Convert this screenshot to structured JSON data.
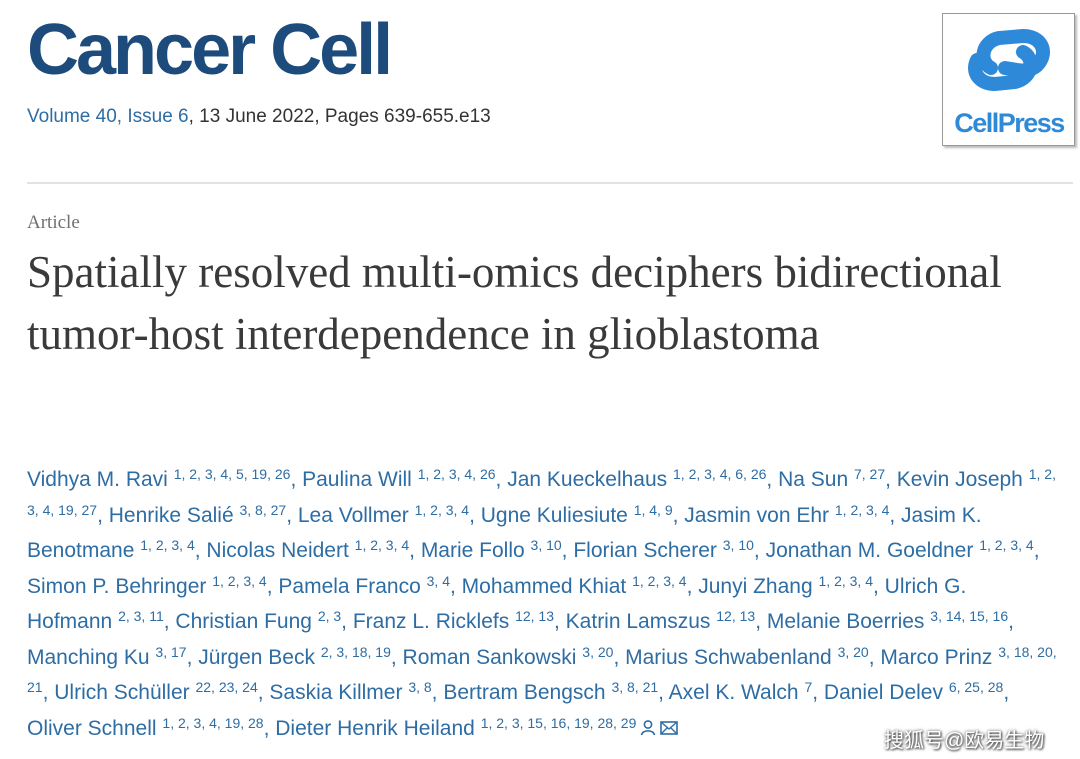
{
  "journal": {
    "name": "Cancer Cell",
    "volume_issue": "Volume 40, Issue 6",
    "details": ", 13 June 2022, Pages 639-655.e13",
    "publisher_logo": "CellPress"
  },
  "article": {
    "type": "Article",
    "title": "Spatially resolved multi-omics deciphers bidirectional tumor-host interdependence in glioblastoma",
    "authors": [
      {
        "name": "Vidhya M. Ravi",
        "affil": "1, 2, 3, 4, 5, 19, 26",
        "sep": ", "
      },
      {
        "name": "Paulina Will",
        "affil": "1, 2, 3, 4, 26",
        "sep": ", "
      },
      {
        "name": "Jan Kueckelhaus",
        "affil": "1, 2, 3, 4, 6, 26",
        "sep": ", "
      },
      {
        "name": "Na Sun",
        "affil": "7, 27",
        "sep": ", "
      },
      {
        "name": "Kevin Joseph",
        "affil": "1, 2, 3, 4, 19, 27",
        "sep": ", "
      },
      {
        "name": "Henrike Salié",
        "affil": "3, 8, 27",
        "sep": ", "
      },
      {
        "name": "Lea Vollmer",
        "affil": "1, 2, 3, 4",
        "sep": ", "
      },
      {
        "name": "Ugne Kuliesiute",
        "affil": "1, 4, 9",
        "sep": ", "
      },
      {
        "name": "Jasmin von Ehr",
        "affil": "1, 2, 3, 4",
        "sep": ", "
      },
      {
        "name": "Jasim K. Benotmane",
        "affil": "1, 2, 3, 4",
        "sep": ", "
      },
      {
        "name": "Nicolas Neidert",
        "affil": "1, 2, 3, 4",
        "sep": ", "
      },
      {
        "name": "Marie Follo",
        "affil": "3, 10",
        "sep": ", "
      },
      {
        "name": "Florian Scherer",
        "affil": "3, 10",
        "sep": ", "
      },
      {
        "name": "Jonathan M. Goeldner",
        "affil": "1, 2, 3, 4",
        "sep": ", "
      },
      {
        "name": "Simon P. Behringer",
        "affil": "1, 2, 3, 4",
        "sep": ", "
      },
      {
        "name": "Pamela Franco",
        "affil": "3, 4",
        "sep": ", "
      },
      {
        "name": "Mohammed Khiat",
        "affil": "1, 2, 3, 4",
        "sep": ", "
      },
      {
        "name": "Junyi Zhang",
        "affil": "1, 2, 3, 4",
        "sep": ", "
      },
      {
        "name": "Ulrich G. Hofmann",
        "affil": "2, 3, 11",
        "sep": ", "
      },
      {
        "name": "Christian Fung",
        "affil": "2, 3",
        "sep": ", "
      },
      {
        "name": "Franz L. Ricklefs",
        "affil": "12, 13",
        "sep": ", "
      },
      {
        "name": "Katrin Lamszus",
        "affil": "12, 13",
        "sep": ", "
      },
      {
        "name": "Melanie Boerries",
        "affil": "3, 14, 15, 16",
        "sep": ", "
      },
      {
        "name": "Manching Ku",
        "affil": "3, 17",
        "sep": ", "
      },
      {
        "name": "Jürgen Beck",
        "affil": "2, 3, 18, 19",
        "sep": ", "
      },
      {
        "name": "Roman Sankowski",
        "affil": "3, 20",
        "sep": ", "
      },
      {
        "name": "Marius Schwabenland",
        "affil": "3, 20",
        "sep": ", "
      },
      {
        "name": "Marco Prinz",
        "affil": "3, 18, 20, 21",
        "sep": ", "
      },
      {
        "name": "Ulrich Schüller",
        "affil": "22, 23, 24",
        "sep": ", "
      },
      {
        "name": "Saskia Killmer",
        "affil": "3, 8",
        "sep": ", "
      },
      {
        "name": "Bertram Bengsch",
        "affil": "3, 8, 21",
        "sep": ", "
      },
      {
        "name": "Axel K. Walch",
        "affil": "7",
        "sep": ", "
      },
      {
        "name": "Daniel Delev",
        "affil": "6, 25, 28",
        "sep": ", "
      },
      {
        "name": "Oliver Schnell",
        "affil": "1, 2, 3, 4, 19, 28",
        "sep": ", "
      },
      {
        "name": "Dieter Henrik Heiland",
        "affil": "1, 2, 3, 15, 16, 19, 28, 29"
      }
    ]
  },
  "watermark": "搜狐号@欧易生物"
}
